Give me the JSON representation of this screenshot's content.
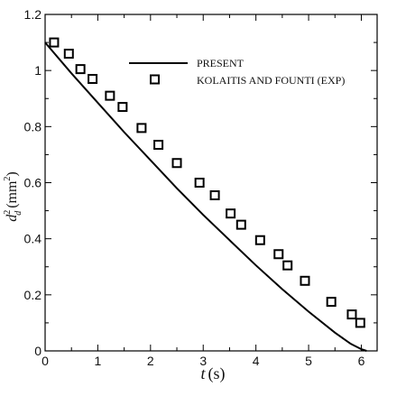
{
  "chart_data": {
    "type": "line",
    "xlabel": {
      "var": "t",
      "unit": "(s)"
    },
    "ylabel": {
      "var": "d",
      "sup": "2",
      "sub": "d",
      "unit": "(mm",
      "unit_sup": "2",
      "unit_close": ")"
    },
    "xlim": [
      0,
      6.3
    ],
    "ylim": [
      0,
      1.2
    ],
    "xticks": [
      0,
      1,
      2,
      3,
      4,
      5,
      6
    ],
    "yticks": [
      0,
      0.2,
      0.4,
      0.6,
      0.8,
      1,
      1.2
    ],
    "ytick_labels": [
      "0",
      "0.2",
      "0.4",
      "0.6",
      "0.8",
      "1",
      "1.2"
    ],
    "legend_position": "top-right",
    "series": [
      {
        "name": "PRESENT",
        "kind": "line",
        "color": "#000000",
        "x": [
          0,
          0.5,
          1.0,
          1.5,
          2.0,
          2.5,
          3.0,
          3.5,
          4.0,
          4.5,
          5.0,
          5.5,
          5.8,
          6.0,
          6.1
        ],
        "y": [
          1.1,
          0.99,
          0.885,
          0.78,
          0.68,
          0.58,
          0.485,
          0.395,
          0.305,
          0.22,
          0.14,
          0.065,
          0.025,
          0.006,
          0.0
        ]
      },
      {
        "name": "KOLAITIS AND FOUNTI (EXP)",
        "kind": "scatter",
        "marker": "square",
        "color": "#000000",
        "x": [
          0.17,
          0.45,
          0.67,
          0.9,
          1.23,
          1.47,
          1.83,
          2.15,
          2.5,
          2.93,
          3.22,
          3.52,
          3.72,
          4.08,
          4.43,
          4.6,
          4.93,
          5.43,
          5.82,
          5.98
        ],
        "y": [
          1.1,
          1.06,
          1.005,
          0.97,
          0.91,
          0.87,
          0.795,
          0.735,
          0.67,
          0.6,
          0.555,
          0.49,
          0.45,
          0.395,
          0.345,
          0.305,
          0.25,
          0.175,
          0.13,
          0.1
        ]
      }
    ],
    "legend_marker_sample": {
      "series": 1
    }
  }
}
